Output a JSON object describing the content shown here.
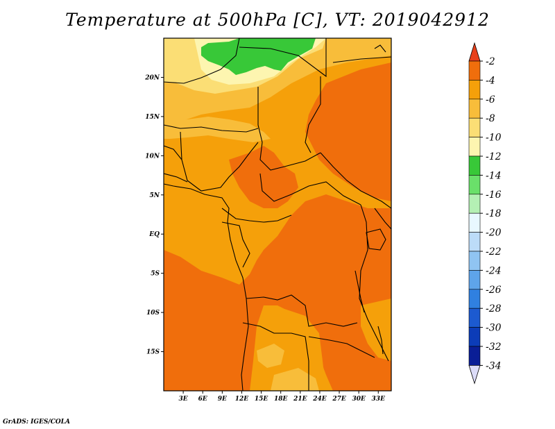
{
  "title": "Temperature at 500hPa [C], VT: 2019042912",
  "credit": "GrADS: IGES/COLA",
  "map": {
    "lon_range": [
      0,
      35
    ],
    "lat_range": [
      -20,
      25
    ],
    "lat_ticks": [
      "20N",
      "15N",
      "10N",
      "5N",
      "EQ",
      "5S",
      "10S",
      "15S"
    ],
    "lat_tick_values": [
      20,
      15,
      10,
      5,
      0,
      -5,
      -10,
      -15
    ],
    "lon_ticks": [
      "3E",
      "6E",
      "9E",
      "12E",
      "15E",
      "18E",
      "21E",
      "24E",
      "27E",
      "30E",
      "33E"
    ],
    "lon_tick_values": [
      3,
      6,
      9,
      12,
      15,
      18,
      21,
      24,
      27,
      30,
      33
    ]
  },
  "colorbar": {
    "labels": [
      "-2",
      "-4",
      "-6",
      "-8",
      "-10",
      "-12",
      "-14",
      "-16",
      "-18",
      "-20",
      "-22",
      "-24",
      "-26",
      "-28",
      "-30",
      "-32",
      "-34"
    ],
    "colors": [
      "#e8401a",
      "#f06e0c",
      "#f5a00a",
      "#f8bd3a",
      "#fbde75",
      "#fdf5b0",
      "#38c838",
      "#6ae06a",
      "#b4f0b4",
      "#e8f8ff",
      "#bcdcf8",
      "#90c4f2",
      "#5ea4ea",
      "#3080e0",
      "#1c5ad0",
      "#0c3cb8",
      "#0a1e96",
      "#0a0a6a",
      "#dcdcf8"
    ]
  },
  "colors": {
    "band_minus4": "#f06e0c",
    "band_minus6": "#f5a00a",
    "band_minus8": "#f8bd3a",
    "band_minus10": "#fbde75",
    "band_minus12": "#fdf5b0",
    "band_minus14": "#38c838"
  }
}
